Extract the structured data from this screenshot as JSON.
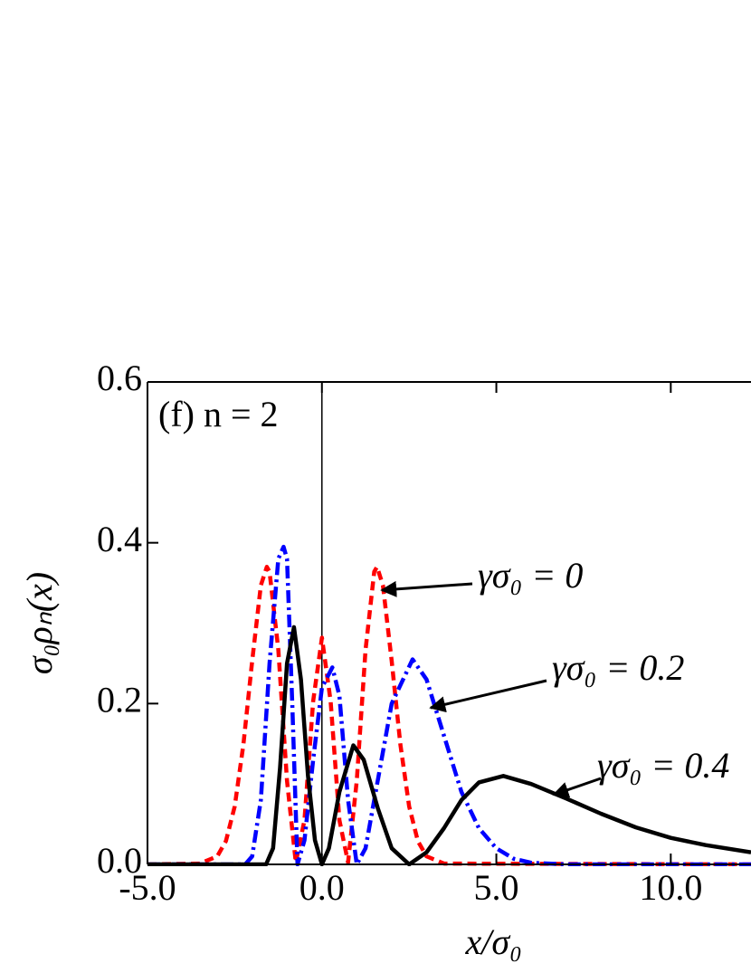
{
  "chart_data": {
    "type": "line",
    "panel_label": "(f) n = 2",
    "x_label": "x/σ₀",
    "y_label": "σ₀ρₙ(x)",
    "xlim": [
      -5,
      12.3
    ],
    "ylim": [
      0,
      0.6
    ],
    "xticks": [
      {
        "value": -5,
        "label": "-5.0"
      },
      {
        "value": 0,
        "label": "0.0"
      },
      {
        "value": 5,
        "label": "5.0"
      },
      {
        "value": 10,
        "label": "10.0"
      }
    ],
    "yticks": [
      {
        "value": 0,
        "label": "0.0"
      },
      {
        "value": 0.2,
        "label": "0.2"
      },
      {
        "value": 0.4,
        "label": "0.4"
      },
      {
        "value": 0.6,
        "label": "0.6"
      }
    ],
    "vline": 0,
    "series": [
      {
        "name": "γσ₀ = 0",
        "color": "#ff0000",
        "dash": "10,6",
        "x": [
          -5,
          -3.5,
          -3,
          -2.75,
          -2.5,
          -2.25,
          -2,
          -1.75,
          -1.58,
          -1.5,
          -1.25,
          -1,
          -0.75,
          -0.5,
          -0.25,
          0,
          0.25,
          0.5,
          0.75,
          1,
          1.25,
          1.5,
          1.58,
          1.75,
          2,
          2.25,
          2.5,
          2.75,
          3,
          3.5,
          12.3
        ],
        "values": [
          0,
          0.001,
          0.01,
          0.029,
          0.072,
          0.149,
          0.253,
          0.347,
          0.37,
          0.364,
          0.267,
          0.104,
          0.0025,
          0.055,
          0.203,
          0.282,
          0.203,
          0.055,
          0.0025,
          0.104,
          0.267,
          0.364,
          0.37,
          0.347,
          0.253,
          0.149,
          0.072,
          0.029,
          0.01,
          0.001,
          0
        ]
      },
      {
        "name": "γσ₀ = 0.2",
        "color": "#0000ff",
        "dash": "14,5,3,5",
        "x": [
          -5,
          -2.2,
          -2,
          -1.75,
          -1.5,
          -1.25,
          -1.1,
          -1,
          -0.85,
          -0.7,
          -0.5,
          -0.25,
          0,
          0.3,
          0.5,
          0.75,
          1,
          1.25,
          1.5,
          2,
          2.6,
          3,
          3.5,
          4,
          4.5,
          5,
          5.5,
          6,
          7,
          12.3
        ],
        "values": [
          0,
          0,
          0.01,
          0.08,
          0.25,
          0.38,
          0.395,
          0.38,
          0.2,
          0,
          0.03,
          0.13,
          0.22,
          0.245,
          0.21,
          0.08,
          0,
          0.02,
          0.08,
          0.2,
          0.255,
          0.23,
          0.16,
          0.09,
          0.045,
          0.02,
          0.007,
          0.002,
          0,
          0
        ]
      },
      {
        "name": "γσ₀ = 0.4",
        "color": "#000000",
        "dash": "",
        "x": [
          -5,
          -1.6,
          -1.4,
          -1.2,
          -1,
          -0.8,
          -0.6,
          -0.4,
          -0.2,
          0,
          0.2,
          0.5,
          0.9,
          1.2,
          1.6,
          2,
          2.5,
          3,
          3.5,
          4,
          4.5,
          5.2,
          6,
          7,
          8,
          9,
          10,
          11,
          12.3
        ],
        "values": [
          0,
          0,
          0.02,
          0.12,
          0.25,
          0.295,
          0.23,
          0.11,
          0.03,
          0,
          0.02,
          0.09,
          0.148,
          0.13,
          0.07,
          0.02,
          0,
          0.015,
          0.045,
          0.08,
          0.102,
          0.11,
          0.1,
          0.082,
          0.063,
          0.046,
          0.033,
          0.024,
          0.015
        ]
      }
    ]
  }
}
